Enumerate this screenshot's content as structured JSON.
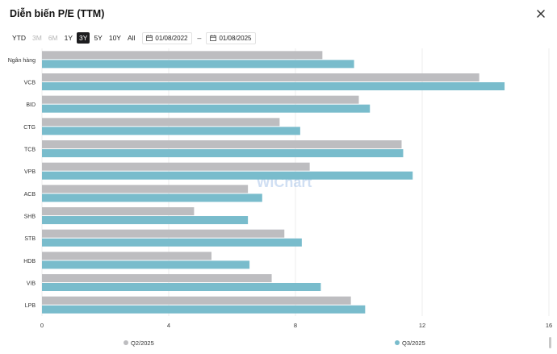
{
  "dialog": {
    "title": "Diễn biến P/E (TTM)"
  },
  "toolbar": {
    "ranges": [
      {
        "label": "YTD",
        "state": "normal"
      },
      {
        "label": "3M",
        "state": "disabled"
      },
      {
        "label": "6M",
        "state": "disabled"
      },
      {
        "label": "1Y",
        "state": "normal"
      },
      {
        "label": "3Y",
        "state": "active"
      },
      {
        "label": "5Y",
        "state": "normal"
      },
      {
        "label": "10Y",
        "state": "normal"
      },
      {
        "label": "All",
        "state": "normal"
      }
    ],
    "date_from": "01/08/2022",
    "date_separator": "–",
    "date_to": "01/08/2025"
  },
  "watermark": "WiChart",
  "colors": {
    "q2": "#bdbdc0",
    "q3": "#79bccc"
  },
  "chart_data": {
    "type": "bar",
    "orientation": "horizontal",
    "categories": [
      "Ngân hàng",
      "VCB",
      "BID",
      "CTG",
      "TCB",
      "VPB",
      "ACB",
      "SHB",
      "STB",
      "HDB",
      "VIB",
      "LPB"
    ],
    "series": [
      {
        "name": "Q2/2025",
        "values": [
          8.85,
          13.8,
          10.0,
          7.5,
          11.35,
          8.45,
          6.5,
          4.8,
          7.65,
          5.35,
          7.25,
          9.75
        ]
      },
      {
        "name": "Q3/2025",
        "values": [
          9.85,
          14.6,
          10.35,
          8.15,
          11.4,
          11.7,
          6.95,
          6.5,
          8.2,
          6.55,
          8.8,
          10.2
        ]
      }
    ],
    "xlim": [
      0,
      16
    ],
    "xticks": [
      "0",
      "4",
      "8",
      "12",
      "16"
    ],
    "grid": true,
    "legend_position": "bottom"
  }
}
